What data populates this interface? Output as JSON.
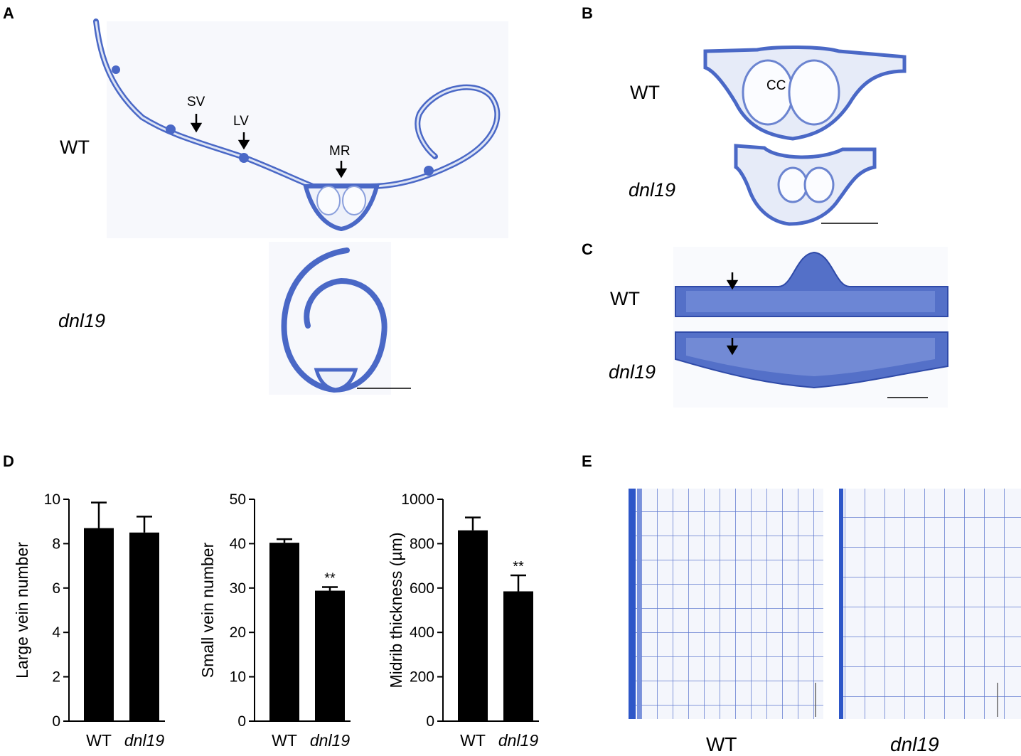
{
  "panels": {
    "A": {
      "label": "A",
      "wt": "WT",
      "mutant": "dnl19",
      "annotations": {
        "sv": "SV",
        "lv": "LV",
        "mr": "MR"
      }
    },
    "B": {
      "label": "B",
      "wt": "WT",
      "mutant": "dnl19",
      "cc": "CC"
    },
    "C": {
      "label": "C",
      "wt": "WT",
      "mutant": "dnl19"
    },
    "D": {
      "label": "D"
    },
    "E": {
      "label": "E",
      "wt": "WT",
      "mutant": "dnl19"
    }
  },
  "colors": {
    "stain": "#4a68c6",
    "stain_light": "#dde4f5",
    "bar": "#000000"
  },
  "chart_data": [
    {
      "type": "bar",
      "ylabel": "Large vein number",
      "categories": [
        "WT",
        "dnl19"
      ],
      "values": [
        8.7,
        8.5
      ],
      "errors": [
        1.15,
        0.72
      ],
      "significance": [
        "",
        ""
      ],
      "ylim": [
        0,
        10
      ],
      "yticks": [
        "0",
        "2",
        "4",
        "6",
        "8",
        "10"
      ]
    },
    {
      "type": "bar",
      "ylabel": "Small vein number",
      "categories": [
        "WT",
        "dnl19"
      ],
      "values": [
        40.2,
        29.4
      ],
      "errors": [
        0.8,
        0.8
      ],
      "significance": [
        "",
        "**"
      ],
      "ylim": [
        0,
        50
      ],
      "yticks": [
        "0",
        "10",
        "20",
        "30",
        "40",
        "50"
      ]
    },
    {
      "type": "bar",
      "ylabel": "Midrib thickness (µm)",
      "categories": [
        "WT",
        "dnl19"
      ],
      "values": [
        860,
        585
      ],
      "errors": [
        58,
        72
      ],
      "significance": [
        "",
        "**"
      ],
      "ylim": [
        0,
        1000
      ],
      "yticks": [
        "0",
        "200",
        "400",
        "600",
        "800",
        "1000"
      ]
    }
  ]
}
